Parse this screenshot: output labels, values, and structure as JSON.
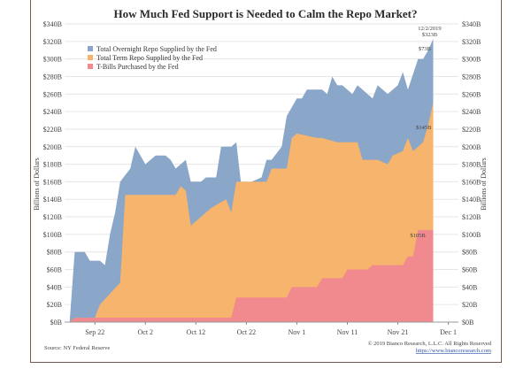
{
  "chart_data": {
    "type": "area",
    "title": "How Much Fed Support is Needed to Calm the Repo Market?",
    "ylabel_left": "Billions of Dollars",
    "ylabel_right": "Billions of Dollars",
    "ylim": [
      0,
      340
    ],
    "yticks": [
      "$0B",
      "$20B",
      "$40B",
      "$60B",
      "$80B",
      "$100B",
      "$120B",
      "$140B",
      "$160B",
      "$180B",
      "$200B",
      "$220B",
      "$240B",
      "$260B",
      "$280B",
      "$300B",
      "$320B",
      "$340B"
    ],
    "xtick_labels": [
      "Sep 22",
      "Oct 2",
      "Oct 12",
      "Oct 22",
      "Nov 1",
      "Nov 11",
      "Nov 21",
      "Dec 1"
    ],
    "xtick_days": [
      5,
      15,
      25,
      35,
      45,
      55,
      65,
      75
    ],
    "xlim": [
      -1,
      77
    ],
    "stacked": true,
    "series": [
      {
        "name": "T-Bills Purchased by the Fed",
        "color": "#f08a8e",
        "points": [
          [
            0,
            0
          ],
          [
            1,
            5
          ],
          [
            32,
            5
          ],
          [
            33,
            28
          ],
          [
            43,
            28
          ],
          [
            44,
            40
          ],
          [
            49,
            40
          ],
          [
            50,
            50
          ],
          [
            54,
            50
          ],
          [
            55,
            60
          ],
          [
            59,
            60
          ],
          [
            60,
            65
          ],
          [
            66,
            65
          ],
          [
            67,
            75
          ],
          [
            68,
            75
          ],
          [
            69,
            105
          ],
          [
            71,
            105
          ],
          [
            72,
            105
          ]
        ]
      },
      {
        "name": "Total Term Repo Supplied by the Fed",
        "color": "#f7b46c",
        "points": [
          [
            0,
            0
          ],
          [
            1,
            5
          ],
          [
            5,
            5
          ],
          [
            6,
            20
          ],
          [
            10,
            45
          ],
          [
            11,
            145
          ],
          [
            21,
            145
          ],
          [
            22,
            155
          ],
          [
            23,
            150
          ],
          [
            24,
            110
          ],
          [
            26,
            120
          ],
          [
            28,
            130
          ],
          [
            31,
            140
          ],
          [
            32,
            125
          ],
          [
            33,
            160
          ],
          [
            39,
            160
          ],
          [
            40,
            175
          ],
          [
            43,
            175
          ],
          [
            44,
            210
          ],
          [
            45,
            215
          ],
          [
            49,
            210
          ],
          [
            50,
            210
          ],
          [
            53,
            205
          ],
          [
            57,
            205
          ],
          [
            58,
            185
          ],
          [
            61,
            185
          ],
          [
            63,
            180
          ],
          [
            64,
            190
          ],
          [
            66,
            195
          ],
          [
            67,
            210
          ],
          [
            68,
            195
          ],
          [
            70,
            205
          ],
          [
            71,
            225
          ],
          [
            72,
            250
          ]
        ]
      },
      {
        "name": "Total Overnight Repo Supplied by the Fed",
        "color": "#8aa6c8",
        "points": [
          [
            0,
            0
          ],
          [
            1,
            80
          ],
          [
            3,
            80
          ],
          [
            4,
            70
          ],
          [
            6,
            70
          ],
          [
            7,
            65
          ],
          [
            8,
            100
          ],
          [
            9,
            125
          ],
          [
            10,
            160
          ],
          [
            12,
            175
          ],
          [
            13,
            200
          ],
          [
            15,
            180
          ],
          [
            17,
            190
          ],
          [
            19,
            190
          ],
          [
            20,
            185
          ],
          [
            21,
            175
          ],
          [
            22,
            180
          ],
          [
            23,
            185
          ],
          [
            24,
            160
          ],
          [
            26,
            160
          ],
          [
            27,
            165
          ],
          [
            29,
            165
          ],
          [
            30,
            200
          ],
          [
            32,
            200
          ],
          [
            33,
            205
          ],
          [
            34,
            155
          ],
          [
            38,
            165
          ],
          [
            39,
            185
          ],
          [
            40,
            185
          ],
          [
            42,
            200
          ],
          [
            43,
            235
          ],
          [
            44,
            245
          ],
          [
            45,
            255
          ],
          [
            46,
            255
          ],
          [
            47,
            265
          ],
          [
            50,
            265
          ],
          [
            51,
            260
          ],
          [
            52,
            280
          ],
          [
            53,
            270
          ],
          [
            54,
            270
          ],
          [
            56,
            260
          ],
          [
            57,
            270
          ],
          [
            58,
            265
          ],
          [
            60,
            255
          ],
          [
            61,
            270
          ],
          [
            62,
            265
          ],
          [
            63,
            260
          ],
          [
            64,
            265
          ],
          [
            65,
            270
          ],
          [
            66,
            285
          ],
          [
            67,
            265
          ],
          [
            69,
            300
          ],
          [
            70,
            300
          ],
          [
            71,
            310
          ],
          [
            72,
            323
          ]
        ]
      }
    ],
    "annotations": [
      {
        "text": "12/2/2019",
        "day": 72
      },
      {
        "text": "$323B",
        "day": 72
      },
      {
        "text": "$73B",
        "day": 71
      },
      {
        "text": "$145B",
        "day": 71
      },
      {
        "text": "$105B",
        "day": 70
      }
    ],
    "legend_position": "top-left",
    "grid": true
  },
  "footer": {
    "source": "Source: NY Federal Reserve",
    "copyright": "© 2019 Bianco Research, L.L.C. All Rights Reserved",
    "url": "https://www.biancoresearch.com"
  }
}
